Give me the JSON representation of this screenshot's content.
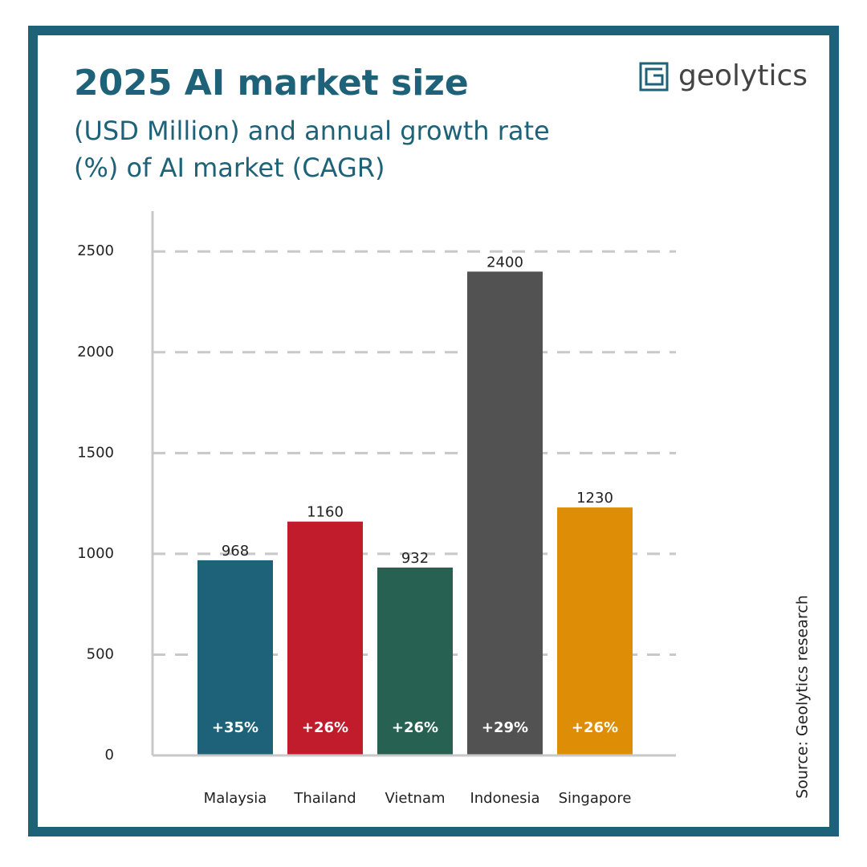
{
  "chart_data": {
    "type": "bar",
    "title": "2025 AI market size",
    "subtitle": "(USD Million) and annual growth rate (%) of AI market (CAGR)",
    "brand": "geolytics",
    "source": "Source: Geolytics research",
    "categories": [
      "Malaysia",
      "Thailand",
      "Vietnam",
      "Indonesia",
      "Singapore"
    ],
    "values": [
      968,
      1160,
      932,
      2400,
      1230
    ],
    "colors": [
      "#1d6278",
      "#c01c2c",
      "#276152",
      "#525252",
      "#de8d07"
    ],
    "cagr_labels": [
      "+35%",
      "+26%",
      "+26%",
      "+29%",
      "+26%"
    ],
    "ylim": [
      0,
      2700
    ],
    "yticks": [
      0,
      500,
      1000,
      1500,
      2000,
      2500
    ],
    "grid": true
  }
}
